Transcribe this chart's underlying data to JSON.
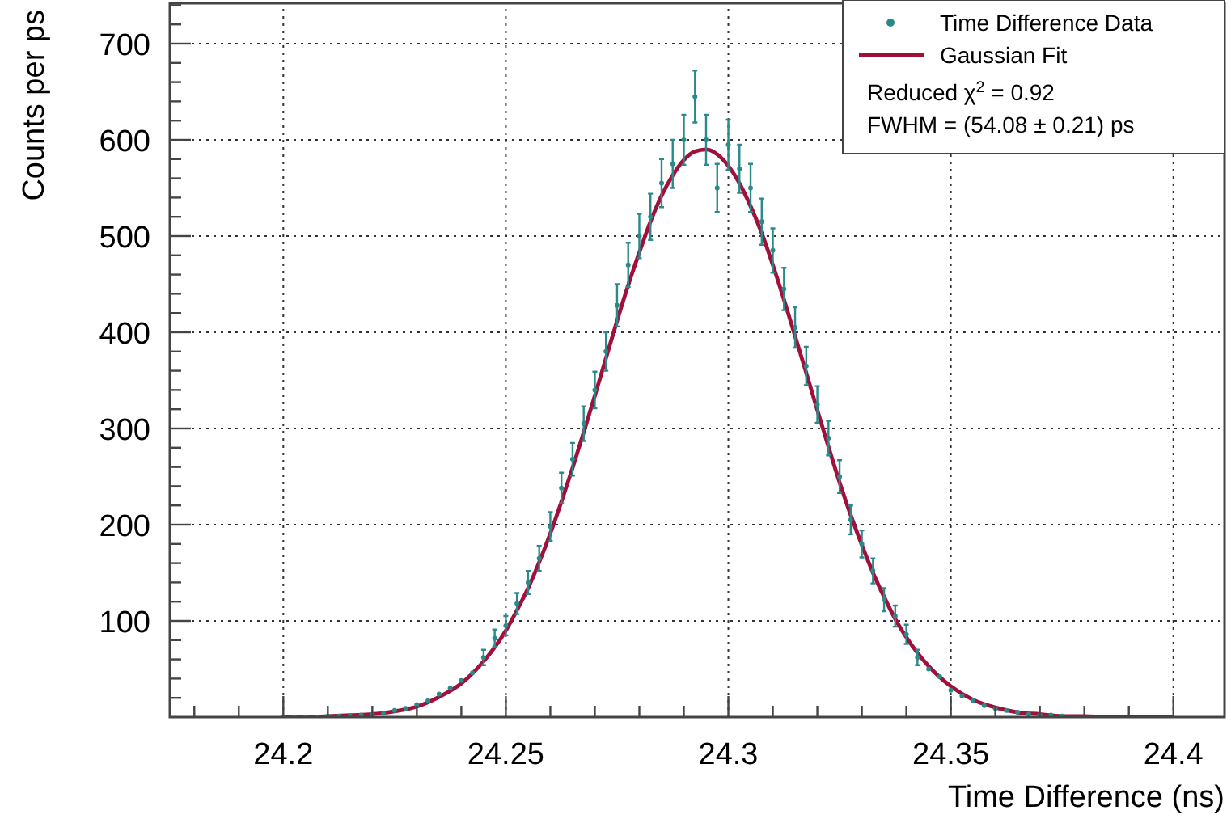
{
  "chart_data": {
    "type": "scatter",
    "xlabel": "Time Difference (ns)",
    "ylabel": "Counts per ps",
    "xlim": [
      24.1745,
      24.4115
    ],
    "ylim": [
      0,
      742
    ],
    "xticks": [
      {
        "value": 24.18,
        "label": null
      },
      {
        "value": 24.19,
        "label": null
      },
      24.2,
      {
        "value": 24.21,
        "label": null
      },
      {
        "value": 24.22,
        "label": null
      },
      {
        "value": 24.23,
        "label": null
      },
      {
        "value": 24.24,
        "label": null
      },
      24.25,
      {
        "value": 24.26,
        "label": null
      },
      {
        "value": 24.27,
        "label": null
      },
      {
        "value": 24.28,
        "label": null
      },
      {
        "value": 24.29,
        "label": null
      },
      24.3,
      {
        "value": 24.31,
        "label": null
      },
      {
        "value": 24.32,
        "label": null
      },
      {
        "value": 24.33,
        "label": null
      },
      {
        "value": 24.34,
        "label": null
      },
      24.35,
      {
        "value": 24.36,
        "label": null
      },
      {
        "value": 24.37,
        "label": null
      },
      {
        "value": 24.38,
        "label": null
      },
      {
        "value": 24.39,
        "label": null
      },
      24.4
    ],
    "yticks": [
      {
        "value": 20,
        "label": null
      },
      {
        "value": 40,
        "label": null
      },
      {
        "value": 60,
        "label": null
      },
      {
        "value": 80,
        "label": null
      },
      100,
      {
        "value": 120,
        "label": null
      },
      {
        "value": 140,
        "label": null
      },
      {
        "value": 160,
        "label": null
      },
      {
        "value": 180,
        "label": null
      },
      200,
      {
        "value": 220,
        "label": null
      },
      {
        "value": 240,
        "label": null
      },
      {
        "value": 260,
        "label": null
      },
      {
        "value": 280,
        "label": null
      },
      300,
      {
        "value": 320,
        "label": null
      },
      {
        "value": 340,
        "label": null
      },
      {
        "value": 360,
        "label": null
      },
      {
        "value": 380,
        "label": null
      },
      400,
      {
        "value": 420,
        "label": null
      },
      {
        "value": 440,
        "label": null
      },
      {
        "value": 460,
        "label": null
      },
      {
        "value": 480,
        "label": null
      },
      500,
      {
        "value": 520,
        "label": null
      },
      {
        "value": 540,
        "label": null
      },
      {
        "value": 560,
        "label": null
      },
      {
        "value": 580,
        "label": null
      },
      600,
      {
        "value": 620,
        "label": null
      },
      {
        "value": 640,
        "label": null
      },
      {
        "value": 660,
        "label": null
      },
      {
        "value": 680,
        "label": null
      },
      700,
      {
        "value": 720,
        "label": null
      },
      {
        "value": 740,
        "label": null
      }
    ],
    "grid": true,
    "legend": "top right",
    "marker": "circle",
    "line_style": "solid",
    "annotations": [
      "Reduced χ$^{2}$ = 0.92",
      "FWHM = (54.08 ± 0.21) ps"
    ],
    "series": [
      {
        "name": "Time Difference Data",
        "color": "#2a8a8a",
        "x": [
          24.2,
          24.2025,
          24.205,
          24.2075,
          24.21,
          24.2125,
          24.215,
          24.2175,
          24.22,
          24.2225,
          24.225,
          24.2275,
          24.23,
          24.2325,
          24.235,
          24.2375,
          24.24,
          24.2425,
          24.245,
          24.2475,
          24.25,
          24.2525,
          24.255,
          24.2575,
          24.26,
          24.2625,
          24.265,
          24.2675,
          24.27,
          24.2725,
          24.275,
          24.2775,
          24.28,
          24.2825,
          24.285,
          24.2875,
          24.29,
          24.2925,
          24.295,
          24.2975,
          24.3,
          24.3025,
          24.305,
          24.3075,
          24.31,
          24.3125,
          24.315,
          24.3175,
          24.32,
          24.3225,
          24.325,
          24.3275,
          24.33,
          24.3325,
          24.335,
          24.3375,
          24.34,
          24.3425,
          24.345,
          24.3475,
          24.35,
          24.3525,
          24.355,
          24.3575,
          24.36,
          24.3625,
          24.365,
          24.3675,
          24.37,
          24.3725,
          24.375
        ],
        "values": [
          0,
          0,
          0,
          0,
          1,
          1,
          1,
          2,
          3,
          4,
          7,
          9,
          13,
          17,
          24,
          30,
          38,
          46,
          62,
          82,
          95,
          118,
          140,
          165,
          198,
          238,
          268,
          305,
          340,
          380,
          428,
          470,
          500,
          520,
          555,
          575,
          600,
          645,
          600,
          550,
          595,
          570,
          550,
          515,
          485,
          445,
          405,
          365,
          325,
          290,
          250,
          205,
          180,
          152,
          122,
          105,
          86,
          62,
          50,
          42,
          28,
          22,
          17,
          12,
          9,
          7,
          5,
          3,
          2,
          2,
          1
        ],
        "errors": [
          null,
          null,
          null,
          null,
          null,
          null,
          null,
          null,
          null,
          null,
          null,
          null,
          null,
          null,
          null,
          null,
          null,
          null,
          8,
          9,
          10,
          11,
          12,
          13,
          15,
          16,
          17,
          18,
          19,
          20,
          22,
          23,
          23,
          24,
          25,
          25,
          26,
          27,
          26,
          25,
          26,
          25,
          25,
          24,
          23,
          22,
          21,
          20,
          19,
          18,
          17,
          15,
          14,
          13,
          12,
          11,
          10,
          8,
          null,
          null,
          null,
          null,
          null,
          null,
          null,
          null,
          null,
          null,
          null,
          null,
          null
        ]
      },
      {
        "type": "line",
        "name": "Gaussian Fit",
        "color": "#a0103a",
        "marker": "none",
        "x": [
          24.2,
          24.205,
          24.21,
          24.215,
          24.22,
          24.225,
          24.23,
          24.235,
          24.24,
          24.245,
          24.25,
          24.2525,
          24.255,
          24.2575,
          24.26,
          24.2625,
          24.265,
          24.2675,
          24.27,
          24.2725,
          24.275,
          24.2775,
          24.28,
          24.2825,
          24.285,
          24.2875,
          24.29,
          24.2925,
          24.295,
          24.2975,
          24.3,
          24.3025,
          24.305,
          24.3075,
          24.31,
          24.3125,
          24.315,
          24.3175,
          24.32,
          24.3225,
          24.325,
          24.3275,
          24.33,
          24.3325,
          24.335,
          24.3375,
          24.34,
          24.345,
          24.35,
          24.355,
          24.36,
          24.365,
          24.37,
          24.375,
          24.38,
          24.385,
          24.39,
          24.395,
          24.4
        ],
        "values": [
          0,
          0,
          1,
          2,
          3,
          6,
          11,
          21,
          35,
          58,
          90,
          111,
          134,
          161,
          191,
          224,
          259,
          296,
          334,
          373,
          412,
          449,
          483,
          515,
          542,
          563,
          579,
          588,
          590,
          585,
          573,
          555,
          531,
          503,
          470,
          434,
          396,
          358,
          319,
          281,
          244,
          210,
          179,
          150,
          125,
          102,
          83,
          53,
          32,
          18,
          10,
          5,
          3,
          1,
          1,
          0,
          0,
          0,
          0
        ]
      }
    ]
  }
}
